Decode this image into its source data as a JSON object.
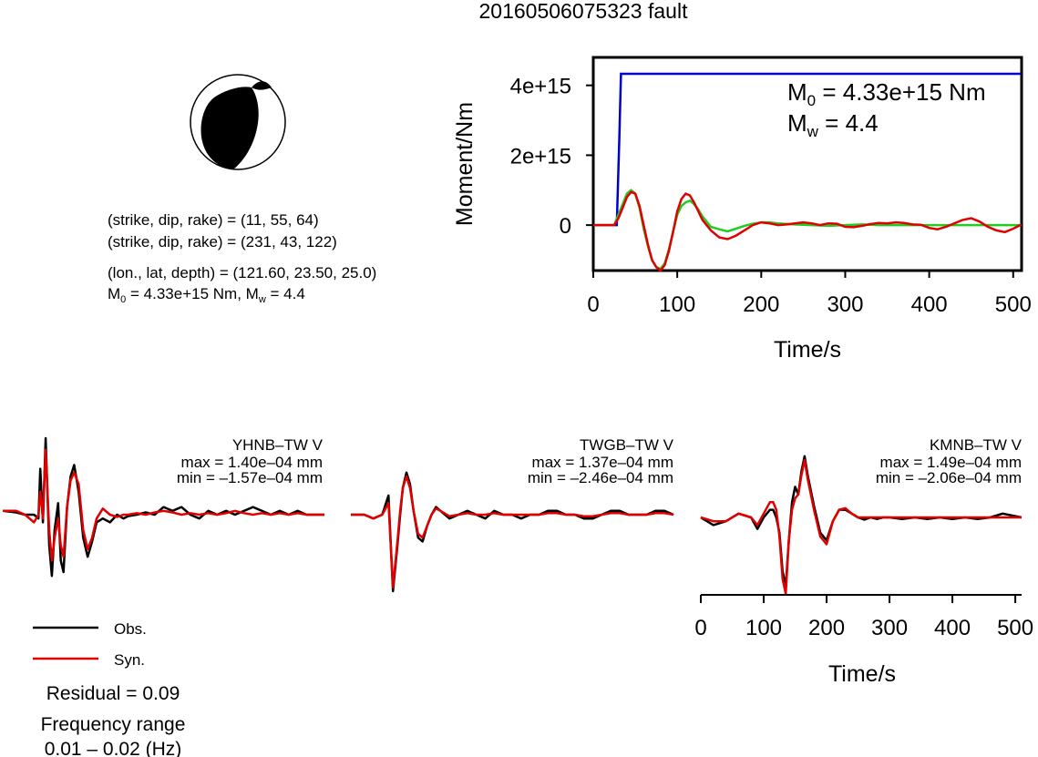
{
  "title": "20160506075323 fault",
  "mechanism": {
    "line1": "(strike, dip, rake) = (11, 55, 64)",
    "line2": "(strike, dip, rake) = (231, 43, 122)",
    "line3": "(lon., lat, depth) = (121.60, 23.50, 25.0)",
    "m0_label": "M",
    "m0_sub": "0",
    "m0_rest": " = 4.33e+15 Nm, M",
    "mw_sub": "w",
    "mw_rest": " = 4.4"
  },
  "moment_panel": {
    "m0_label": "M",
    "m0_sub": "0",
    "m0_value": " = 4.33e+15 Nm",
    "mw_label": "M",
    "mw_sub": "w",
    "mw_value": " = 4.4"
  },
  "legend": {
    "obs": "Obs.",
    "syn": "Syn.",
    "residual": "Residual = 0.09",
    "freq_title": "Frequency range",
    "freq_value": "0.01 – 0.02 (Hz)"
  },
  "stations": [
    {
      "name": "YHNB–TW V",
      "max": "max = 1.40e–04 mm",
      "min": "min = –1.57e–04 mm"
    },
    {
      "name": "TWGB–TW V",
      "max": "max = 1.37e–04 mm",
      "min": "min = –2.46e–04 mm"
    },
    {
      "name": "KMNB–TW V",
      "max": "max = 1.49e–04 mm",
      "min": "min = –2.06e–04 mm"
    }
  ],
  "colors": {
    "obs": "#000000",
    "syn": "#e00000",
    "cumulative": "#0000cc",
    "smoothed": "#22cc22"
  },
  "chart_data": [
    {
      "type": "line",
      "xlabel": "Time/s",
      "ylabel": "Moment/Nm",
      "xlim": [
        0,
        510
      ],
      "ylim": [
        -1300000000000000.0,
        4800000000000000.0
      ],
      "xticks": [
        0,
        100,
        200,
        300,
        400,
        500
      ],
      "xtick_labels": [
        "0",
        "100",
        "200",
        "300",
        "400",
        "500"
      ],
      "yticks": [
        0,
        2000000000000000.0,
        4000000000000000.0
      ],
      "ytick_labels": [
        "0",
        "2e+15",
        "4e+15"
      ],
      "series": [
        {
          "color": "#0000cc",
          "x": [
            0,
            28,
            31,
            33,
            510
          ],
          "y": [
            0,
            0,
            2500000000000000.0,
            4330000000000000.0,
            4330000000000000.0
          ]
        },
        {
          "color": "#22cc22",
          "x": [
            0,
            25,
            30,
            35,
            40,
            45,
            50,
            55,
            60,
            65,
            70,
            75,
            80,
            85,
            90,
            95,
            100,
            105,
            110,
            115,
            120,
            125,
            130,
            140,
            150,
            160,
            170,
            180,
            190,
            200,
            210,
            220,
            240,
            260,
            280,
            300,
            320,
            340,
            360,
            380,
            400,
            420,
            440,
            460,
            480,
            510
          ],
          "y": [
            0,
            0,
            300000000000000.0,
            600000000000000.0,
            900000000000000.0,
            1000000000000000.0,
            900000000000000.0,
            500000000000000.0,
            -100000000000000.0,
            -600000000000000.0,
            -1000000000000000.0,
            -1200000000000000.0,
            -1250000000000000.0,
            -1100000000000000.0,
            -700000000000000.0,
            -200000000000000.0,
            300000000000000.0,
            550000000000000.0,
            650000000000000.0,
            700000000000000.0,
            600000000000000.0,
            450000000000000.0,
            250000000000000.0,
            -50000000000000.0,
            -120000000000000.0,
            -180000000000000.0,
            -100000000000000.0,
            -20000000000000.0,
            40000000000000.0,
            80000000000000.0,
            80000000000000.0,
            50000000000000.0,
            20000000000000.0,
            0,
            -20000000000000.0,
            0,
            20000000000000.0,
            0,
            0,
            0,
            0,
            0,
            0,
            0,
            0,
            0
          ]
        },
        {
          "color": "#e00000",
          "x": [
            0,
            25,
            30,
            35,
            40,
            45,
            50,
            55,
            60,
            65,
            70,
            75,
            80,
            85,
            90,
            95,
            100,
            105,
            110,
            115,
            120,
            125,
            130,
            140,
            150,
            160,
            170,
            180,
            190,
            200,
            210,
            220,
            230,
            240,
            250,
            260,
            270,
            280,
            290,
            300,
            310,
            320,
            330,
            340,
            350,
            360,
            370,
            380,
            390,
            400,
            410,
            420,
            430,
            440,
            450,
            460,
            470,
            480,
            490,
            500,
            510
          ],
          "y": [
            0,
            0,
            200000000000000.0,
            500000000000000.0,
            800000000000000.0,
            950000000000000.0,
            900000000000000.0,
            550000000000000.0,
            0,
            -550000000000000.0,
            -1000000000000000.0,
            -1200000000000000.0,
            -1300000000000000.0,
            -1150000000000000.0,
            -750000000000000.0,
            -200000000000000.0,
            400000000000000.0,
            750000000000000.0,
            900000000000000.0,
            850000000000000.0,
            650000000000000.0,
            400000000000000.0,
            150000000000000.0,
            -150000000000000.0,
            -350000000000000.0,
            -400000000000000.0,
            -300000000000000.0,
            -150000000000000.0,
            0,
            80000000000000.0,
            50000000000000.0,
            0,
            20000000000000.0,
            50000000000000.0,
            80000000000000.0,
            50000000000000.0,
            0,
            50000000000000.0,
            40000000000000.0,
            -50000000000000.0,
            -60000000000000.0,
            -20000000000000.0,
            30000000000000.0,
            60000000000000.0,
            50000000000000.0,
            80000000000000.0,
            60000000000000.0,
            20000000000000.0,
            10000000000000.0,
            -80000000000000.0,
            -120000000000000.0,
            -50000000000000.0,
            50000000000000.0,
            150000000000000.0,
            200000000000000.0,
            100000000000000.0,
            -50000000000000.0,
            -150000000000000.0,
            -200000000000000.0,
            -100000000000000.0,
            20000000000000.0
          ]
        }
      ]
    },
    {
      "type": "line",
      "xlabel": "Time/s",
      "xlim": [
        0,
        510
      ],
      "xticks": [
        0,
        100,
        200,
        300,
        400,
        500
      ],
      "xtick_labels": [
        "0",
        "100",
        "200",
        "300",
        "400",
        "500"
      ],
      "panels": [
        {
          "obs": {
            "x": [
              0,
              15,
              25,
              35,
              40,
              42,
              45,
              48,
              52,
              55,
              58,
              62,
              65,
              68,
              72,
              76,
              80,
              85,
              90,
              95,
              100,
              105,
              112,
              120,
              128,
              135,
              140,
              150,
              160,
              170,
              180,
              190,
              200,
              210,
              220,
              230,
              240,
              250,
              260,
              270,
              280,
              290,
              300,
              310,
              320,
              330,
              340,
              350,
              360
            ],
            "y": [
              0.05,
              0.03,
              0.0,
              0.0,
              -0.05,
              0.6,
              -0.1,
              1.0,
              -0.4,
              -0.8,
              -0.2,
              0.15,
              -0.6,
              -0.75,
              0.1,
              0.5,
              0.65,
              0.3,
              -0.3,
              -0.55,
              -0.35,
              -0.1,
              -0.05,
              -0.1,
              0.0,
              -0.05,
              -0.02,
              0.0,
              0.03,
              0.0,
              0.1,
              0.05,
              0.1,
              0.0,
              -0.05,
              0.05,
              0.0,
              0.05,
              0.0,
              0.05,
              0.1,
              0.05,
              0.0,
              0.05,
              0.0,
              0.05,
              0.0,
              0.0,
              0.0
            ]
          },
          "syn": {
            "x": [
              0,
              15,
              25,
              35,
              40,
              42,
              45,
              48,
              52,
              55,
              58,
              62,
              65,
              68,
              72,
              76,
              80,
              85,
              90,
              95,
              100,
              105,
              112,
              120,
              128,
              135,
              140,
              150,
              160,
              170,
              180,
              190,
              200,
              210,
              220,
              230,
              240,
              250,
              260,
              270,
              280,
              290,
              300,
              310,
              320,
              330,
              340,
              350,
              360
            ],
            "y": [
              0.05,
              0.05,
              0.0,
              -0.1,
              0.0,
              0.3,
              -0.05,
              0.85,
              -0.2,
              -0.6,
              -0.3,
              -0.05,
              -0.4,
              -0.55,
              0.1,
              0.45,
              0.55,
              0.4,
              -0.2,
              -0.45,
              -0.3,
              -0.05,
              0.08,
              0.0,
              -0.03,
              0.0,
              0.0,
              0.02,
              0.0,
              0.03,
              0.05,
              0.03,
              0.0,
              0.02,
              0.0,
              0.02,
              0.0,
              0.02,
              0.05,
              0.02,
              0.0,
              0.02,
              0.0,
              0.02,
              0.0,
              0.02,
              0.0,
              0.0,
              0.0
            ]
          }
        },
        {
          "obs": {
            "x": [
              0,
              15,
              25,
              35,
              42,
              47,
              52,
              55,
              58,
              62,
              66,
              70,
              75,
              80,
              85,
              90,
              95,
              100,
              110,
              120,
              130,
              140,
              150,
              160,
              170,
              180,
              190,
              200,
              210,
              220,
              230,
              240,
              250,
              260,
              270,
              280,
              290,
              300,
              310,
              320,
              330,
              340,
              350,
              360
            ],
            "y": [
              0.0,
              0.0,
              -0.05,
              0.0,
              0.25,
              -1.0,
              -0.4,
              0.0,
              0.35,
              0.55,
              0.4,
              0.05,
              -0.3,
              -0.35,
              -0.15,
              0.0,
              0.1,
              0.05,
              -0.05,
              0.0,
              0.05,
              0.0,
              -0.05,
              0.05,
              0.0,
              0.0,
              -0.05,
              0.0,
              0.0,
              0.05,
              0.05,
              0.0,
              0.0,
              -0.05,
              -0.05,
              0.0,
              0.05,
              0.05,
              0.0,
              0.0,
              0.0,
              0.05,
              0.05,
              0.0
            ]
          },
          "syn": {
            "x": [
              0,
              15,
              25,
              35,
              42,
              47,
              52,
              55,
              58,
              62,
              66,
              70,
              75,
              80,
              85,
              90,
              95,
              100,
              110,
              120,
              130,
              140,
              150,
              160,
              170,
              180,
              190,
              200,
              210,
              220,
              230,
              240,
              250,
              260,
              270,
              280,
              290,
              300,
              310,
              320,
              330,
              340,
              350,
              360
            ],
            "y": [
              0.0,
              0.0,
              -0.05,
              0.0,
              0.15,
              -0.95,
              -0.35,
              0.05,
              0.35,
              0.5,
              0.35,
              0.05,
              -0.25,
              -0.3,
              -0.15,
              0.0,
              0.08,
              0.05,
              -0.02,
              0.0,
              0.02,
              0.0,
              0.0,
              0.02,
              0.0,
              0.0,
              0.0,
              0.0,
              0.0,
              0.02,
              0.02,
              0.0,
              0.0,
              -0.02,
              -0.02,
              0.0,
              0.02,
              0.02,
              0.0,
              0.0,
              0.0,
              0.02,
              0.02,
              0.0
            ]
          }
        },
        {
          "obs": {
            "x": [
              0,
              20,
              40,
              60,
              80,
              90,
              100,
              110,
              115,
              120,
              125,
              130,
              135,
              140,
              145,
              150,
              155,
              160,
              165,
              170,
              180,
              190,
              200,
              210,
              220,
              230,
              240,
              250,
              260,
              270,
              280,
              290,
              300,
              320,
              340,
              360,
              380,
              400,
              420,
              440,
              460,
              480,
              510
            ],
            "y": [
              0.0,
              -0.1,
              -0.05,
              0.05,
              0.0,
              -0.15,
              0.0,
              0.1,
              0.1,
              0.0,
              -0.2,
              -0.7,
              -0.9,
              -0.3,
              0.2,
              0.4,
              0.3,
              0.6,
              0.8,
              0.55,
              0.15,
              -0.2,
              -0.3,
              -0.05,
              0.1,
              0.1,
              0.05,
              0.0,
              -0.03,
              0.0,
              -0.02,
              0.0,
              0.0,
              -0.02,
              0.0,
              -0.02,
              0.0,
              -0.02,
              0.0,
              -0.02,
              0.0,
              0.05,
              0.0
            ]
          },
          "syn": {
            "x": [
              0,
              20,
              40,
              60,
              80,
              90,
              100,
              110,
              115,
              120,
              125,
              130,
              135,
              140,
              145,
              150,
              155,
              160,
              165,
              170,
              180,
              190,
              200,
              210,
              220,
              230,
              240,
              250,
              260,
              270,
              280,
              290,
              300,
              320,
              340,
              360,
              380,
              400,
              420,
              440,
              460,
              480,
              510
            ],
            "y": [
              0.0,
              -0.05,
              -0.05,
              0.05,
              0.0,
              -0.1,
              0.05,
              0.2,
              0.2,
              0.1,
              -0.25,
              -0.8,
              -1.0,
              -0.3,
              0.1,
              0.25,
              0.3,
              0.55,
              0.75,
              0.5,
              0.1,
              -0.25,
              -0.35,
              -0.05,
              0.1,
              0.12,
              0.05,
              0.0,
              0.0,
              0.0,
              0.0,
              0.0,
              0.0,
              0.0,
              0.0,
              0.0,
              0.0,
              0.0,
              0.0,
              0.0,
              0.0,
              0.0,
              0.0
            ]
          }
        }
      ]
    }
  ]
}
